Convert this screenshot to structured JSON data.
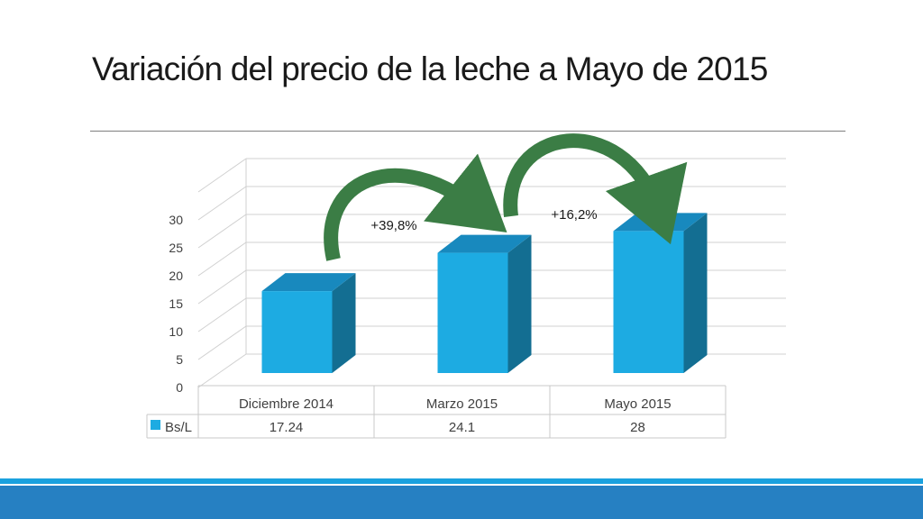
{
  "slide": {
    "title": "Variación del precio de la leche a Mayo de 2015"
  },
  "chart_data": {
    "type": "bar",
    "categories": [
      "Diciembre 2014",
      "Marzo 2015",
      "Mayo 2015"
    ],
    "series": [
      {
        "name": "Bs/L",
        "values": [
          17.24,
          24.1,
          28
        ],
        "color": "#1DABE2"
      }
    ],
    "value_labels": [
      "17.24",
      "24.1",
      "28"
    ],
    "yticks": [
      0,
      5,
      10,
      15,
      20,
      25,
      30
    ],
    "ylim": [
      0,
      35
    ],
    "grid": true,
    "legend": "data-table",
    "annotations": [
      {
        "text": "+39,8%",
        "from": "Diciembre 2014",
        "to": "Marzo 2015"
      },
      {
        "text": "+16,2%",
        "from": "Marzo 2015",
        "to": "Mayo 2015"
      }
    ],
    "arrow_color": "#3b7d45"
  },
  "colors": {
    "bar_front": "#1DABE2",
    "bar_top": "#1889BE",
    "bar_side": "#136E92",
    "footer": "#2680C2",
    "footer_accent": "#1AA1DE"
  }
}
